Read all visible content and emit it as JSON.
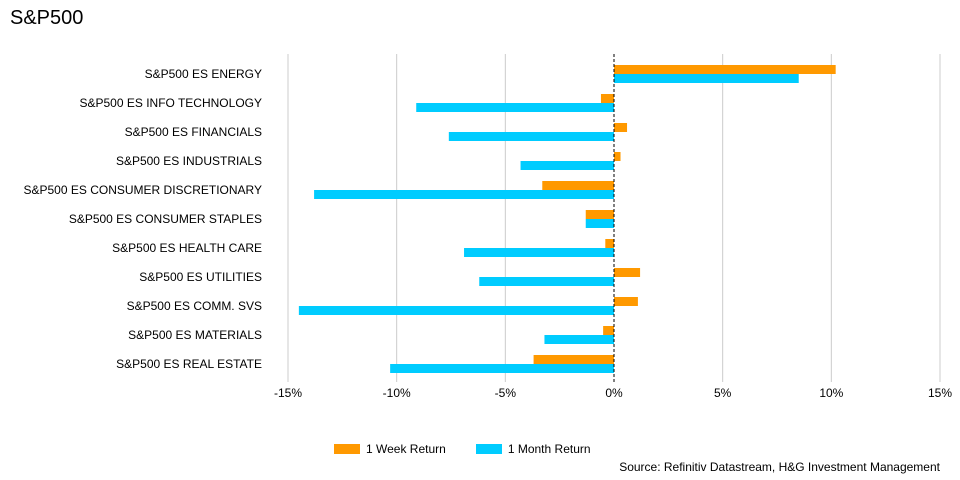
{
  "chart_data": {
    "type": "bar",
    "orientation": "horizontal",
    "title": "S&P500",
    "categories": [
      "S&P500 ES ENERGY",
      "S&P500 ES INFO TECHNOLOGY",
      "S&P500 ES FINANCIALS",
      "S&P500 ES INDUSTRIALS",
      "S&P500 ES CONSUMER DISCRETIONARY",
      "S&P500 ES CONSUMER STAPLES",
      "S&P500 ES HEALTH CARE",
      "S&P500 ES UTILITIES",
      "S&P500 ES COMM. SVS",
      "S&P500 ES MATERIALS",
      "S&P500 ES REAL ESTATE"
    ],
    "series": [
      {
        "name": "1 Week Return",
        "color": "#FF9900",
        "values": [
          10.2,
          -0.6,
          0.6,
          0.3,
          -3.3,
          -1.3,
          -0.4,
          1.2,
          1.1,
          -0.5,
          -3.7
        ]
      },
      {
        "name": "1 Month Return",
        "color": "#00CCFF",
        "values": [
          8.5,
          -9.1,
          -7.6,
          -4.3,
          -13.8,
          -1.3,
          -6.9,
          -6.2,
          -14.5,
          -3.2,
          -10.3
        ]
      }
    ],
    "xlim": [
      -15,
      15
    ],
    "xticks": [
      -15,
      -10,
      -5,
      0,
      5,
      10,
      15
    ],
    "xtick_labels": [
      "-15%",
      "-10%",
      "-5%",
      "0%",
      "5%",
      "10%",
      "15%"
    ],
    "grid": "vertical",
    "zero_line": "dashed",
    "legend_position": "bottom",
    "source": "Source: Refinitiv Datastream, H&G Investment Management"
  }
}
